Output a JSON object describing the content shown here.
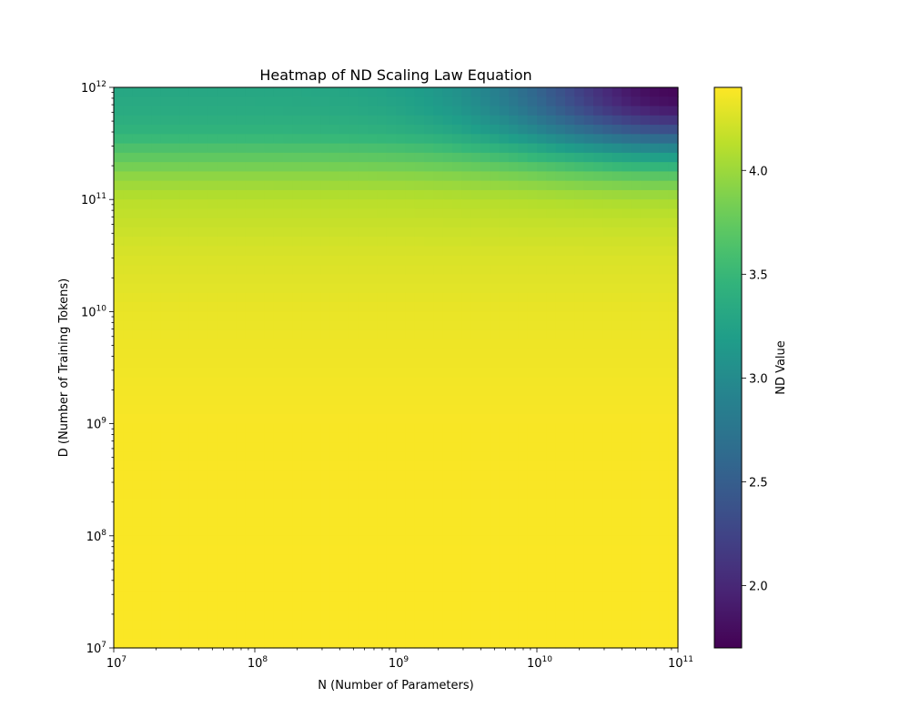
{
  "chart_data": {
    "type": "heatmap",
    "title": "Heatmap of ND Scaling Law Equation",
    "xlabel": "N (Number of Parameters)",
    "ylabel": "D (Number of Training Tokens)",
    "x_scale": "log",
    "y_scale": "log",
    "xlim": [
      10000000,
      100000000000
    ],
    "ylim": [
      10000000,
      1000000000000
    ],
    "x_ticks": [
      {
        "value": 10000000,
        "base": "10",
        "exp": "7"
      },
      {
        "value": 100000000,
        "base": "10",
        "exp": "8"
      },
      {
        "value": 1000000000,
        "base": "10",
        "exp": "9"
      },
      {
        "value": 10000000000,
        "base": "10",
        "exp": "10"
      },
      {
        "value": 100000000000,
        "base": "10",
        "exp": "11"
      }
    ],
    "y_ticks": [
      {
        "value": 10000000,
        "base": "10",
        "exp": "7"
      },
      {
        "value": 100000000,
        "base": "10",
        "exp": "8"
      },
      {
        "value": 1000000000,
        "base": "10",
        "exp": "9"
      },
      {
        "value": 10000000000,
        "base": "10",
        "exp": "10"
      },
      {
        "value": 100000000000,
        "base": "10",
        "exp": "11"
      },
      {
        "value": 1000000000000,
        "base": "10",
        "exp": "12"
      }
    ],
    "colorbar": {
      "label": "ND Value",
      "colormap": "viridis",
      "vmin": 1.7,
      "vmax": 4.4,
      "ticks": [
        "2.0",
        "2.5",
        "3.0",
        "3.5",
        "4.0"
      ]
    },
    "grid": false,
    "value_profile_by_log10_D": {
      "log10_D": [
        7,
        9,
        10,
        10.5,
        11,
        11.2,
        11.4,
        11.6,
        11.8,
        12
      ],
      "nd_value": [
        4.39,
        4.38,
        4.32,
        4.25,
        4.12,
        3.95,
        3.7,
        3.45,
        3.35,
        3.3
      ]
    },
    "high_N_high_D_minimum": {
      "N": 100000000000,
      "D": 900000000000,
      "nd_value": 1.75
    }
  }
}
